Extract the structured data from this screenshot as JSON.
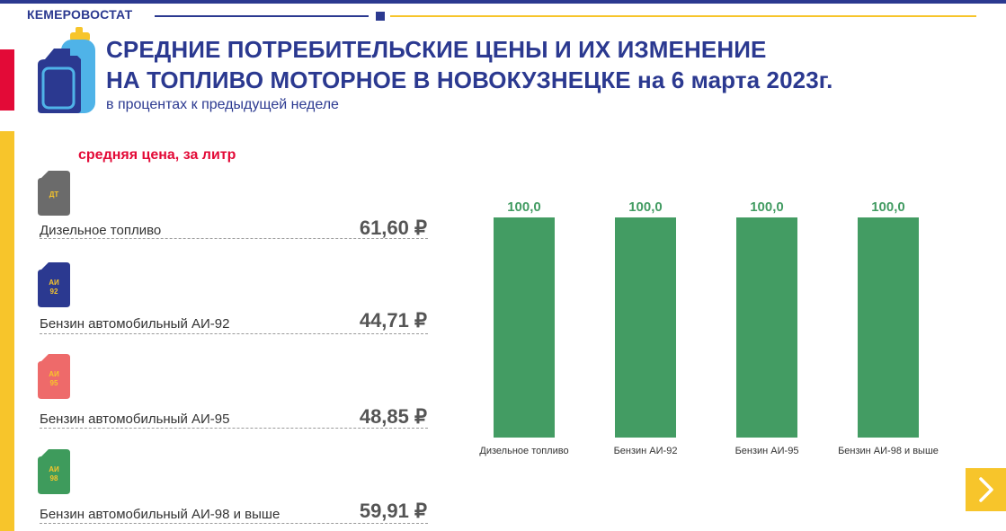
{
  "header": {
    "brand": "КЕМЕРОВОСТАТ",
    "title_line1": "СРЕДНИЕ ПОТРЕБИТЕЛЬСКИЕ ЦЕНЫ И ИХ ИЗМЕНЕНИЕ",
    "title_line2": "НА ТОПЛИВО МОТОРНОЕ В НОВОКУЗНЕЦКЕ на 6 марта 2023г.",
    "subtitle": "в процентах к предыдущей неделе"
  },
  "prices": {
    "heading": "средняя цена, за литр",
    "items": [
      {
        "name": "Дизельное топливо",
        "price": "61,60 ₽",
        "can_label_1": "ДТ",
        "can_label_2": "",
        "can_color": "#6b6b6b",
        "can_text_color": "#f7c52b"
      },
      {
        "name": "Бензин автомобильный АИ-92",
        "price": "44,71 ₽",
        "can_label_1": "АИ",
        "can_label_2": "92",
        "can_color": "#2b3990",
        "can_text_color": "#f7c52b"
      },
      {
        "name": "Бензин автомобильный АИ-95",
        "price": "48,85 ₽",
        "can_label_1": "АИ",
        "can_label_2": "95",
        "can_color": "#ee6a6a",
        "can_text_color": "#f7c52b"
      },
      {
        "name": "Бензин автомобильный АИ-98 и выше",
        "price": "59,91 ₽",
        "can_label_1": "АИ",
        "can_label_2": "98",
        "can_color": "#3e9b5c",
        "can_text_color": "#f7c52b"
      }
    ]
  },
  "chart_data": {
    "type": "bar",
    "categories": [
      "Дизельное топливо",
      "Бензин АИ-92",
      "Бензин АИ-95",
      "Бензин АИ-98 и выше"
    ],
    "values": [
      100.0,
      100.0,
      100.0,
      100.0
    ],
    "value_labels": [
      "100,0",
      "100,0",
      "100,0",
      "100,0"
    ],
    "bar_color": "#439c63",
    "label_color": "#439c63",
    "ylim": [
      0,
      100
    ],
    "grid": false,
    "xlabel": "",
    "ylabel": ""
  },
  "colors": {
    "primary": "#2b3990",
    "accent_red": "#e30a37",
    "accent_yellow": "#f7c52b"
  },
  "nav": {
    "next_icon": "chevron-right-icon"
  }
}
